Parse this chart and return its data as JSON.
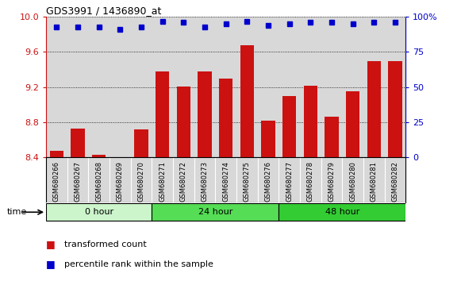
{
  "title": "GDS3991 / 1436890_at",
  "samples": [
    "GSM680266",
    "GSM680267",
    "GSM680268",
    "GSM680269",
    "GSM680270",
    "GSM680271",
    "GSM680272",
    "GSM680273",
    "GSM680274",
    "GSM680275",
    "GSM680276",
    "GSM680277",
    "GSM680278",
    "GSM680279",
    "GSM680280",
    "GSM680281",
    "GSM680282"
  ],
  "transformed_count": [
    8.47,
    8.73,
    8.43,
    8.4,
    8.72,
    9.38,
    9.21,
    9.38,
    9.3,
    9.68,
    8.82,
    9.1,
    9.22,
    8.86,
    9.15,
    9.5,
    9.5
  ],
  "percentile_rank_pct": [
    93,
    93,
    93,
    91,
    93,
    97,
    96,
    93,
    95,
    97,
    94,
    95,
    96,
    96,
    95,
    96,
    96
  ],
  "groups": [
    {
      "label": "0 hour",
      "start": 0,
      "end": 5,
      "color": "#ccf5cc"
    },
    {
      "label": "24 hour",
      "start": 5,
      "end": 11,
      "color": "#55dd55"
    },
    {
      "label": "48 hour",
      "start": 11,
      "end": 17,
      "color": "#33cc33"
    }
  ],
  "bar_color": "#cc1111",
  "dot_color": "#0000cc",
  "ylim_left": [
    8.4,
    10.0
  ],
  "ylim_right": [
    0,
    100
  ],
  "yticks_left": [
    8.4,
    8.8,
    9.2,
    9.6,
    10.0
  ],
  "yticks_right": [
    0,
    25,
    50,
    75,
    100
  ],
  "ytick_labels_right": [
    "0",
    "25",
    "50",
    "75",
    "100%"
  ],
  "background_color": "#d8d8d8",
  "bar_bottom": 8.4,
  "time_label": "time",
  "legend_bar_label": "transformed count",
  "legend_dot_label": "percentile rank within the sample"
}
